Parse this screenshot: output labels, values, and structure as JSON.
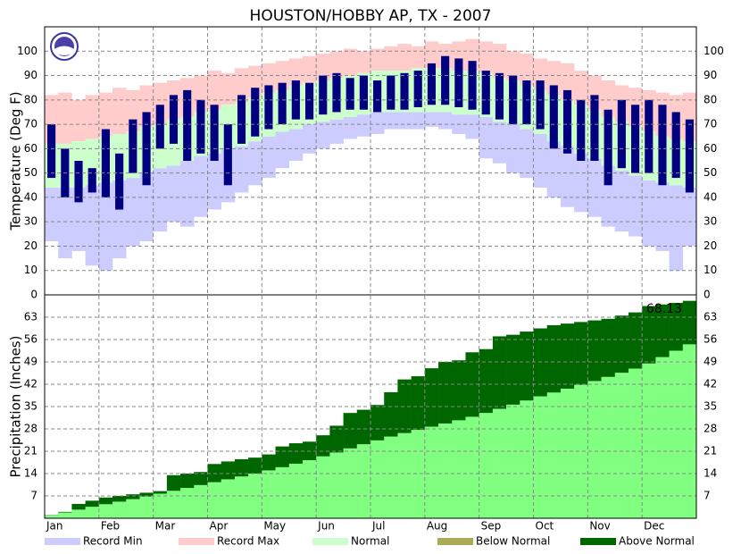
{
  "chart_data": [
    {
      "type": "temperature_range",
      "title": "HOUSTON/HOBBY AP, TX - 2007",
      "y_label": "Temperature (Deg F)",
      "ylim": [
        0,
        110
      ],
      "yticks": [
        0,
        10,
        20,
        30,
        40,
        50,
        60,
        70,
        80,
        90,
        100
      ],
      "grid": true,
      "series": [
        {
          "color": "#ccccff",
          "values": [
            22,
            15,
            18,
            12,
            10,
            15,
            20,
            22,
            26,
            30,
            28,
            32,
            35,
            38,
            42,
            45,
            48,
            52,
            55,
            58,
            60,
            62,
            64,
            65,
            66,
            68,
            68,
            68,
            69,
            68,
            66,
            64,
            56,
            54,
            50,
            48,
            44,
            40,
            36,
            34,
            32,
            28,
            26,
            24,
            20,
            18,
            10,
            20
          ]
        },
        {
          "color": "#ffcccc",
          "values": [
            82,
            83,
            80,
            82,
            83,
            85,
            84,
            86,
            87,
            88,
            89,
            90,
            92,
            91,
            93,
            94,
            95,
            96,
            97,
            98,
            99,
            100,
            101,
            100,
            101,
            102,
            103,
            102,
            104,
            103,
            104,
            105,
            104,
            103,
            100,
            99,
            97,
            96,
            95,
            92,
            90,
            88,
            86,
            85,
            84,
            83,
            82,
            83
          ]
        },
        {
          "color": "#ccffcc",
          "values": [
            62,
            62,
            63,
            64,
            65,
            66,
            67,
            69,
            70,
            72,
            73,
            75,
            76,
            78,
            79,
            81,
            83,
            84,
            86,
            87,
            88,
            89,
            90,
            91,
            92,
            92,
            92,
            93,
            93,
            93,
            92,
            92,
            91,
            89,
            88,
            86,
            84,
            82,
            80,
            78,
            76,
            73,
            71,
            69,
            67,
            65,
            64,
            63
          ],
          "lows": [
            44,
            44,
            44,
            45,
            46,
            47,
            48,
            50,
            52,
            53,
            55,
            57,
            58,
            60,
            61,
            63,
            65,
            67,
            68,
            70,
            71,
            72,
            73,
            74,
            75,
            75,
            75,
            75,
            75,
            75,
            74,
            74,
            73,
            71,
            70,
            68,
            66,
            63,
            61,
            58,
            56,
            53,
            51,
            49,
            47,
            46,
            45,
            44
          ]
        },
        {
          "color": "#000080",
          "values": [
            70,
            60,
            55,
            52,
            68,
            58,
            72,
            75,
            78,
            82,
            84,
            80,
            78,
            70,
            82,
            85,
            86,
            87,
            88,
            87,
            90,
            91,
            89,
            90,
            88,
            90,
            91,
            92,
            95,
            98,
            97,
            96,
            92,
            91,
            90,
            88,
            88,
            86,
            84,
            80,
            82,
            76,
            80,
            78,
            80,
            78,
            75,
            72
          ],
          "lows": [
            48,
            40,
            38,
            42,
            40,
            35,
            50,
            45,
            60,
            62,
            55,
            58,
            55,
            45,
            62,
            65,
            68,
            70,
            72,
            72,
            74,
            75,
            76,
            76,
            75,
            76,
            76,
            77,
            78,
            78,
            77,
            76,
            74,
            72,
            70,
            70,
            68,
            60,
            58,
            55,
            55,
            45,
            52,
            50,
            50,
            45,
            48,
            42
          ]
        }
      ]
    },
    {
      "type": "cumulative_area",
      "y_label": "Precipitation (Inches)",
      "annotation": "68.13",
      "categories": [
        "Jan",
        null,
        null,
        null,
        "Feb",
        null,
        null,
        null,
        "Mar",
        null,
        null,
        null,
        "Apr",
        null,
        null,
        null,
        "May",
        null,
        null,
        null,
        "Jun",
        null,
        null,
        null,
        "Jul",
        null,
        null,
        null,
        "Aug",
        null,
        null,
        null,
        "Sep",
        null,
        null,
        null,
        "Oct",
        null,
        null,
        null,
        "Nov",
        null,
        null,
        null,
        "Dec",
        null,
        null,
        null
      ],
      "ylim": [
        0,
        70
      ],
      "yticks": [
        7,
        14,
        21,
        28,
        35,
        42,
        49,
        56,
        63
      ],
      "grid": true,
      "series": [
        {
          "color": "#80ff80",
          "values": [
            0.9,
            1.8,
            2.7,
            3.6,
            4.4,
            5.2,
            6.0,
            6.8,
            7.7,
            8.6,
            9.5,
            10.4,
            11.3,
            12.2,
            13.1,
            14.0,
            15.0,
            16.0,
            17.1,
            18.2,
            19.4,
            20.6,
            21.9,
            23.2,
            24.4,
            25.6,
            26.7,
            27.7,
            28.7,
            29.7,
            30.7,
            31.8,
            33.0,
            34.3,
            35.6,
            36.9,
            38.2,
            39.4,
            40.6,
            41.8,
            43.0,
            44.3,
            45.6,
            46.9,
            48.5,
            50.5,
            52.5,
            54.5
          ]
        },
        {
          "color": "#006600",
          "below_color": "#aaaa55",
          "values": [
            1.0,
            2.0,
            4.5,
            5.5,
            6.5,
            7.0,
            7.5,
            8.0,
            8.5,
            13.5,
            14.0,
            14.5,
            17.0,
            17.8,
            18.5,
            19.0,
            20.0,
            22.5,
            23.5,
            24.0,
            26.0,
            29.0,
            33.0,
            34.0,
            35.5,
            39.5,
            43.5,
            44.5,
            47.0,
            49.0,
            49.5,
            52.0,
            53.0,
            57.0,
            57.5,
            58.5,
            59.5,
            60.5,
            61.0,
            61.5,
            62.0,
            62.5,
            63.5,
            64.5,
            66.5,
            67.0,
            67.5,
            68.13
          ]
        }
      ]
    }
  ],
  "legend": [
    {
      "name": "Record Min",
      "color": "#ccccff"
    },
    {
      "name": "Record Max",
      "color": "#ffcccc"
    },
    {
      "name": "Normal",
      "color": "#ccffcc"
    },
    {
      "name": "Below Normal",
      "color": "#aaaa55"
    },
    {
      "name": "Above Normal",
      "color": "#006600"
    }
  ]
}
